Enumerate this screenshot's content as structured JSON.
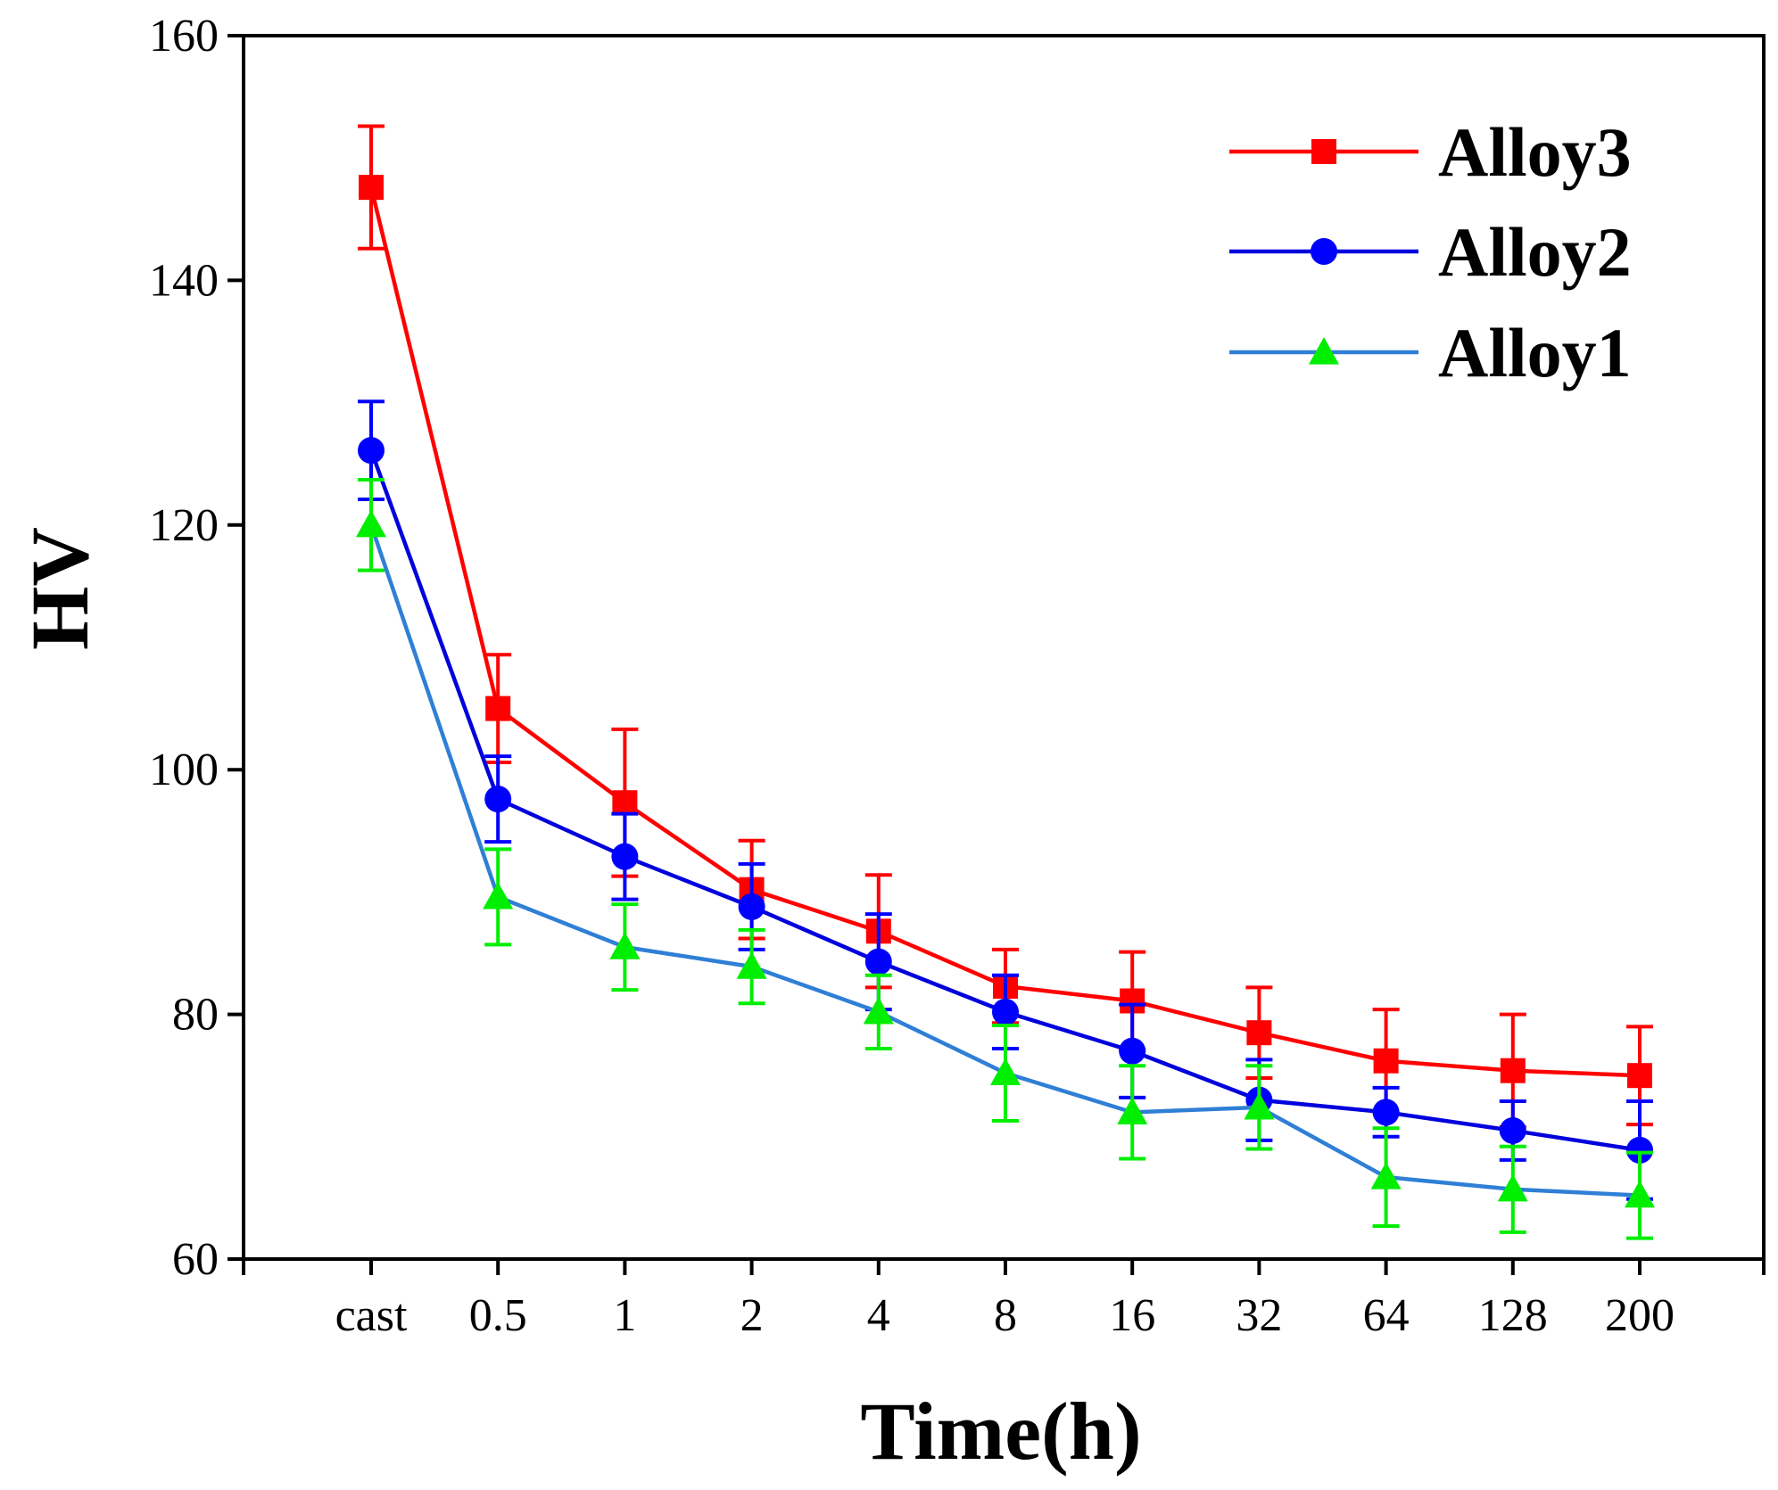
{
  "chart_data": {
    "type": "line",
    "title": "",
    "xlabel": "Time(h)",
    "ylabel": "HV",
    "categories": [
      "cast",
      "0.5",
      "1",
      "2",
      "4",
      "8",
      "16",
      "32",
      "64",
      "128",
      "200"
    ],
    "ylim": [
      60,
      160
    ],
    "yticks": [
      60,
      80,
      100,
      120,
      140,
      160
    ],
    "grid": false,
    "legend_position": "top-right",
    "series": [
      {
        "name": "Alloy3",
        "line_color": "#ff0000",
        "marker_color": "#ff0000",
        "marker": "square",
        "values": [
          147.6,
          105.0,
          97.3,
          90.2,
          86.8,
          82.3,
          81.1,
          78.5,
          76.2,
          75.4,
          75.0
        ],
        "errors": [
          5.0,
          4.4,
          6.0,
          4.0,
          4.6,
          3.0,
          4.0,
          3.7,
          4.2,
          4.6,
          4.0
        ]
      },
      {
        "name": "Alloy2",
        "line_color": "#0000dd",
        "marker_color": "#0000ff",
        "marker": "circle",
        "values": [
          126.1,
          97.6,
          92.9,
          88.8,
          84.3,
          80.2,
          77.0,
          73.0,
          72.0,
          70.5,
          68.9
        ],
        "errors": [
          4.0,
          3.5,
          3.5,
          3.5,
          3.9,
          3.0,
          3.8,
          3.3,
          2.0,
          2.4,
          4.0
        ]
      },
      {
        "name": "Alloy1",
        "line_color": "#2f7fd6",
        "marker_color": "#00ee00",
        "marker": "triangle",
        "values": [
          120.0,
          89.6,
          85.5,
          83.9,
          80.2,
          75.2,
          72.0,
          72.4,
          66.7,
          65.7,
          65.2
        ],
        "errors": [
          3.7,
          3.9,
          3.5,
          3.0,
          3.0,
          3.9,
          3.8,
          3.4,
          4.0,
          3.5,
          3.5
        ]
      }
    ]
  }
}
